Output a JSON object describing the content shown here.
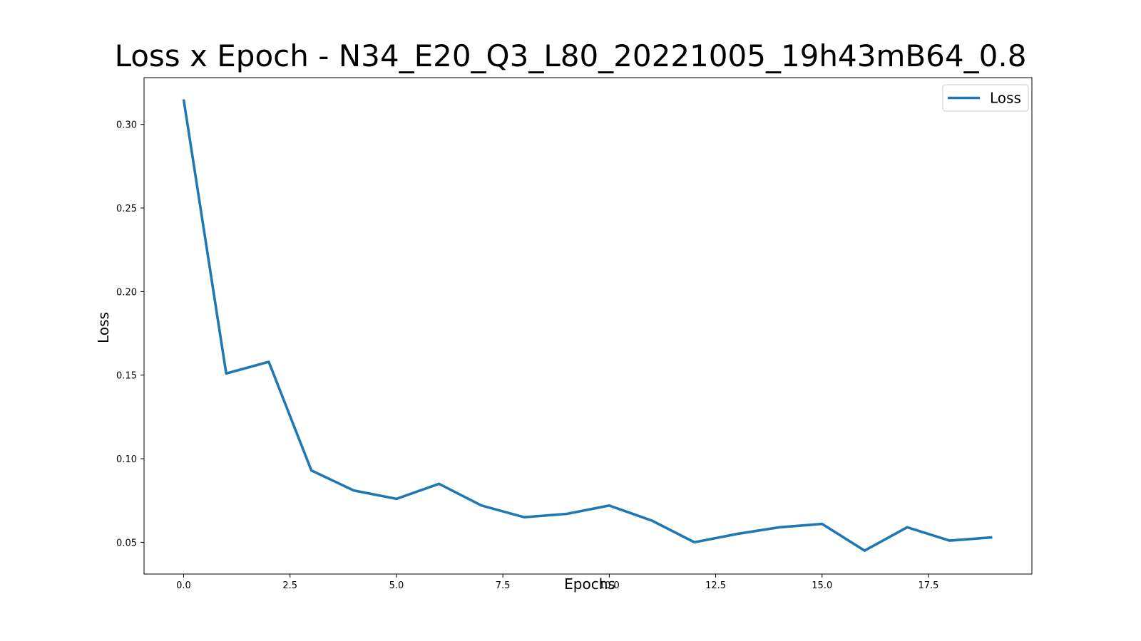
{
  "chart_data": {
    "type": "line",
    "title": "Loss x Epoch - N34_E20_Q3_L80_20221005_19h43mB64_0.8",
    "xlabel": "Epochs",
    "ylabel": "Loss",
    "xlim": [
      -0.93,
      19.93
    ],
    "ylim": [
      0.031,
      0.328
    ],
    "x_ticks": [
      0.0,
      2.5,
      5.0,
      7.5,
      10.0,
      12.5,
      15.0,
      17.5
    ],
    "x_tick_labels": [
      "0.0",
      "2.5",
      "5.0",
      "7.5",
      "10.0",
      "12.5",
      "15.0",
      "17.5"
    ],
    "y_ticks": [
      0.05,
      0.1,
      0.15,
      0.2,
      0.25,
      0.3
    ],
    "y_tick_labels": [
      "0.05",
      "0.10",
      "0.15",
      "0.20",
      "0.25",
      "0.30"
    ],
    "grid": false,
    "legend_position": "top-right",
    "series": [
      {
        "name": "Loss",
        "color": "#1f77b4",
        "x": [
          0,
          1,
          2,
          3,
          4,
          5,
          6,
          7,
          8,
          9,
          10,
          11,
          12,
          13,
          14,
          15,
          16,
          17,
          18,
          19
        ],
        "y": [
          0.315,
          0.151,
          0.158,
          0.093,
          0.081,
          0.076,
          0.085,
          0.072,
          0.065,
          0.067,
          0.072,
          0.063,
          0.05,
          0.055,
          0.059,
          0.061,
          0.045,
          0.059,
          0.051,
          0.053
        ]
      }
    ]
  }
}
